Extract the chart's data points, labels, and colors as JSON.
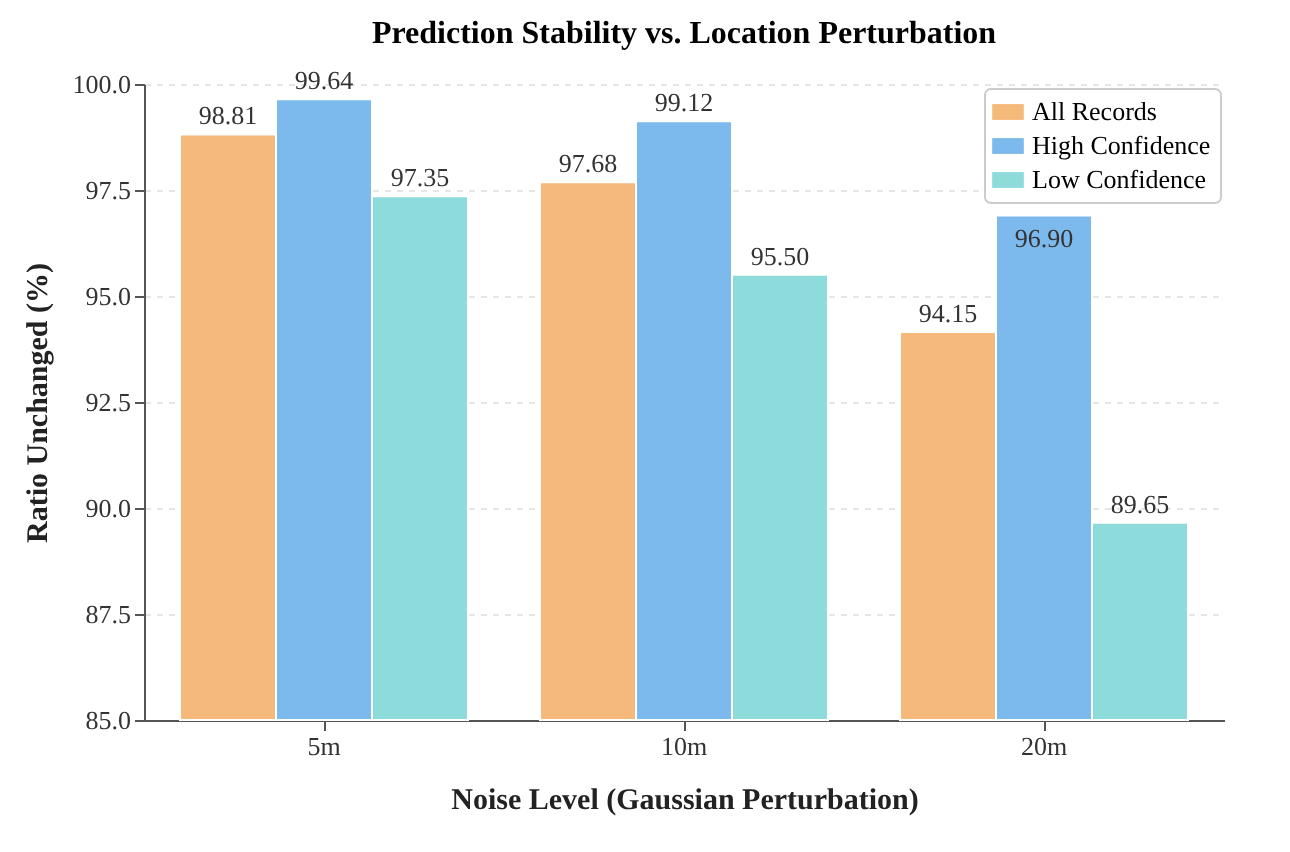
{
  "chart_data": {
    "type": "bar",
    "title": "Prediction Stability vs. Location Perturbation",
    "xlabel": "Noise Level (Gaussian Perturbation)",
    "ylabel": "Ratio Unchanged (%)",
    "categories": [
      "5m",
      "10m",
      "20m"
    ],
    "series": [
      {
        "name": "All Records",
        "color": "#f4b97b",
        "values": [
          98.81,
          97.68,
          94.15
        ],
        "value_labels": [
          "98.81",
          "97.68",
          "94.15"
        ]
      },
      {
        "name": "High Confidence",
        "color": "#7cb9ec",
        "values": [
          99.64,
          99.12,
          96.9
        ],
        "value_labels": [
          "99.64",
          "99.12",
          "96.90"
        ]
      },
      {
        "name": "Low Confidence",
        "color": "#8ddbdb",
        "values": [
          97.35,
          95.5,
          89.65
        ],
        "value_labels": [
          "97.35",
          "95.50",
          "89.65"
        ]
      }
    ],
    "ylim": [
      85,
      100
    ],
    "yticks": [
      {
        "value": 85,
        "label": "85.0"
      },
      {
        "value": 87.5,
        "label": "87.5"
      },
      {
        "value": 90,
        "label": "90.0"
      },
      {
        "value": 92.5,
        "label": "92.5"
      },
      {
        "value": 95,
        "label": "95.0"
      },
      {
        "value": 97.5,
        "label": "97.5"
      },
      {
        "value": 100,
        "label": "100.0"
      }
    ],
    "grid": "y",
    "legend": "top right"
  }
}
